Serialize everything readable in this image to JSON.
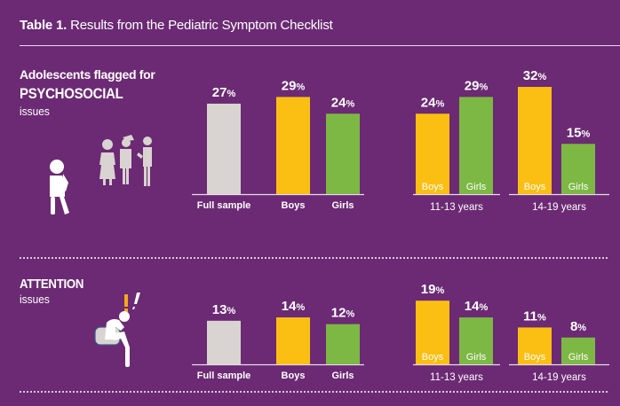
{
  "title": {
    "bold": "Table 1.",
    "rest": " Results from the Pediatric Symptom Checklist"
  },
  "sections": [
    {
      "line1": "Adolescents flagged for",
      "line2": "PSYCHOSOCIAL",
      "line3": "issues",
      "icon": "group-of-adolescents-icon"
    },
    {
      "line2": "ATTENTION",
      "line3": "issues",
      "icon": "worried-sitting-person-icon"
    }
  ],
  "colors": {
    "background": "#6b2a73",
    "full_sample": "#d9d3d1",
    "boys": "#fbbf13",
    "girls": "#7db844",
    "exclaim": "#f5a81c"
  },
  "chart_data": [
    {
      "type": "bar",
      "title": "Adolescents flagged for PSYCHOSOCIAL issues",
      "unit": "%",
      "groups": [
        {
          "label": "",
          "categories": [
            "Full sample",
            "Boys",
            "Girls"
          ],
          "values": [
            27,
            29,
            24
          ],
          "labels_below": true
        },
        {
          "label": "11-13 years",
          "categories": [
            "Boys",
            "Girls"
          ],
          "values": [
            24,
            29
          ],
          "labels_below": false
        },
        {
          "label": "14-19 years",
          "categories": [
            "Boys",
            "Girls"
          ],
          "values": [
            32,
            15
          ],
          "labels_below": false
        }
      ],
      "ylim": [
        0,
        35
      ],
      "grid": false
    },
    {
      "type": "bar",
      "title": "ATTENTION issues",
      "unit": "%",
      "groups": [
        {
          "label": "",
          "categories": [
            "Full sample",
            "Boys",
            "Girls"
          ],
          "values": [
            13,
            14,
            12
          ],
          "labels_below": true
        },
        {
          "label": "11-13 years",
          "categories": [
            "Boys",
            "Girls"
          ],
          "values": [
            19,
            14
          ],
          "labels_below": false
        },
        {
          "label": "14-19 years",
          "categories": [
            "Boys",
            "Girls"
          ],
          "values": [
            11,
            8
          ],
          "labels_below": false
        }
      ],
      "ylim": [
        0,
        35
      ],
      "grid": false
    }
  ]
}
